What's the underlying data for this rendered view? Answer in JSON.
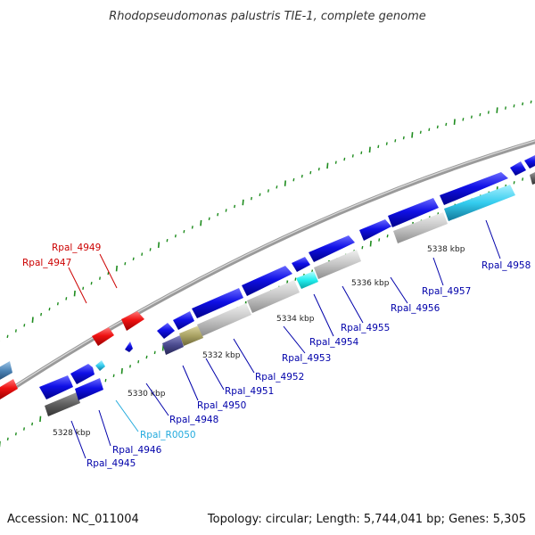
{
  "title": "Rhodopseudomonas palustris TIE-1, complete genome",
  "footer": {
    "accession": "Accession: NC_011004",
    "summary": "Topology: circular; Length: 5,744,041 bp; Genes: 5,305"
  },
  "colors": {
    "backbone": "#8a8a8a",
    "ticks": "#1e8c1e",
    "cds_blue": "#1010e6",
    "cds_red": "#ee1111",
    "rna_cyan": "#33ccee",
    "feature_gray": "#c4c4c4",
    "feature_darkgray": "#5f5f5f",
    "feature_navy": "#4a4a8e",
    "feature_olive": "#a9a264",
    "feature_steel": "#4a82b4",
    "highlight_cyan": "#22eeee",
    "label_blue": "#0000aa",
    "label_red": "#cc0000",
    "label_cyan": "#22aadd"
  },
  "scale_ticks": [
    "5328 kbp",
    "5330 kbp",
    "5332 kbp",
    "5334 kbp",
    "5336 kbp",
    "5338 kbp"
  ],
  "gene_labels": [
    {
      "name": "Rpal_4949",
      "color": "red"
    },
    {
      "name": "Rpal_4947",
      "color": "red"
    },
    {
      "name": "Rpal_4945",
      "color": "blue"
    },
    {
      "name": "Rpal_4946",
      "color": "blue"
    },
    {
      "name": "Rpal_R0050",
      "color": "cyan"
    },
    {
      "name": "Rpal_4948",
      "color": "blue"
    },
    {
      "name": "Rpal_4950",
      "color": "blue"
    },
    {
      "name": "Rpal_4951",
      "color": "blue"
    },
    {
      "name": "Rpal_4952",
      "color": "blue"
    },
    {
      "name": "Rpal_4953",
      "color": "blue"
    },
    {
      "name": "Rpal_4954",
      "color": "blue"
    },
    {
      "name": "Rpal_4955",
      "color": "blue"
    },
    {
      "name": "Rpal_4956",
      "color": "blue"
    },
    {
      "name": "Rpal_4957",
      "color": "blue"
    },
    {
      "name": "Rpal_4958",
      "color": "blue"
    }
  ]
}
